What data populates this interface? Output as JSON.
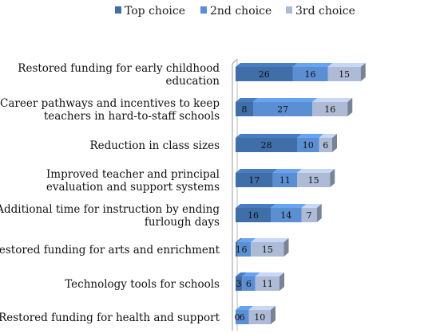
{
  "chart_data": {
    "type": "bar",
    "orientation": "horizontal",
    "stacked": true,
    "style": "3d",
    "legend_position": "top",
    "grid": false,
    "categories": [
      "Restored funding for early childhood education",
      "Career pathways and incentives to keep teachers in hard-to-staff schools",
      "Reduction in class sizes",
      "Improved teacher and principal evaluation and support systems",
      "Additional time for instruction by ending furlough days",
      "Restored funding for arts and enrichment",
      "Technology tools for schools",
      "Restored funding for health and support"
    ],
    "category_lines": [
      [
        "Restored funding for early childhood",
        "education"
      ],
      [
        "Career pathways and incentives to keep",
        "teachers in hard-to-staff schools"
      ],
      [
        "Reduction in class sizes"
      ],
      [
        "Improved teacher and principal",
        "evaluation and support systems"
      ],
      [
        "Additional time for instruction by ending",
        "furlough days"
      ],
      [
        "Restored funding for arts and enrichment"
      ],
      [
        "Technology tools for schools"
      ],
      [
        "Restored funding for health and support"
      ]
    ],
    "series": [
      {
        "name": "Top choice",
        "values": [
          26,
          8,
          28,
          17,
          16,
          1,
          3,
          0
        ],
        "color": "#3f6ea8"
      },
      {
        "name": "2nd choice",
        "values": [
          16,
          27,
          10,
          11,
          14,
          6,
          6,
          6
        ],
        "color": "#5b8fd3"
      },
      {
        "name": "3rd choice",
        "values": [
          15,
          16,
          6,
          15,
          7,
          15,
          11,
          10
        ],
        "color": "#aebbd6"
      }
    ]
  }
}
